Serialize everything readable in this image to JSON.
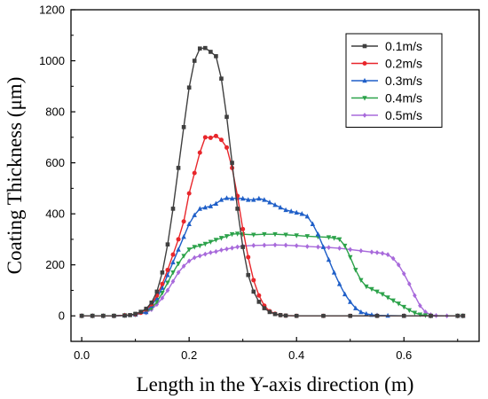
{
  "chart_data": {
    "type": "line",
    "title": "",
    "xlabel": "Length in the Y-axis direction (m)",
    "ylabel": "Coating Thickness (μm)",
    "xlim": [
      -0.02,
      0.74
    ],
    "ylim": [
      -100,
      1200
    ],
    "xticks": [
      "0.0",
      "0.2",
      "0.4",
      "0.6"
    ],
    "xtick_values": [
      0.0,
      0.2,
      0.4,
      0.6
    ],
    "yticks": [
      "0",
      "200",
      "400",
      "600",
      "800",
      "1000",
      "1200"
    ],
    "ytick_values": [
      0,
      200,
      400,
      600,
      800,
      1000,
      1200
    ],
    "grid": false,
    "legend_position": "top-right",
    "series": [
      {
        "name": "0.1m/s",
        "color": "#3f3f3f",
        "marker": "square",
        "points": [
          [
            0.0,
            0
          ],
          [
            0.02,
            0
          ],
          [
            0.04,
            0
          ],
          [
            0.06,
            0
          ],
          [
            0.08,
            1
          ],
          [
            0.09,
            3
          ],
          [
            0.1,
            8
          ],
          [
            0.11,
            16
          ],
          [
            0.12,
            28
          ],
          [
            0.13,
            52
          ],
          [
            0.14,
            95
          ],
          [
            0.15,
            170
          ],
          [
            0.16,
            280
          ],
          [
            0.17,
            420
          ],
          [
            0.18,
            580
          ],
          [
            0.19,
            740
          ],
          [
            0.2,
            895
          ],
          [
            0.21,
            1000
          ],
          [
            0.22,
            1048
          ],
          [
            0.23,
            1050
          ],
          [
            0.24,
            1035
          ],
          [
            0.25,
            1018
          ],
          [
            0.26,
            930
          ],
          [
            0.27,
            780
          ],
          [
            0.28,
            600
          ],
          [
            0.29,
            420
          ],
          [
            0.3,
            270
          ],
          [
            0.31,
            160
          ],
          [
            0.32,
            95
          ],
          [
            0.33,
            55
          ],
          [
            0.34,
            30
          ],
          [
            0.35,
            15
          ],
          [
            0.36,
            7
          ],
          [
            0.37,
            3
          ],
          [
            0.38,
            1
          ],
          [
            0.4,
            0
          ],
          [
            0.45,
            0
          ],
          [
            0.5,
            0
          ],
          [
            0.55,
            0
          ],
          [
            0.6,
            0
          ],
          [
            0.65,
            0
          ],
          [
            0.7,
            0
          ],
          [
            0.71,
            0
          ]
        ]
      },
      {
        "name": "0.2m/s",
        "color": "#e8262b",
        "marker": "circle",
        "points": [
          [
            0.0,
            0
          ],
          [
            0.02,
            0
          ],
          [
            0.04,
            0
          ],
          [
            0.06,
            0
          ],
          [
            0.08,
            2
          ],
          [
            0.1,
            6
          ],
          [
            0.11,
            12
          ],
          [
            0.12,
            25
          ],
          [
            0.13,
            45
          ],
          [
            0.14,
            80
          ],
          [
            0.15,
            125
          ],
          [
            0.16,
            180
          ],
          [
            0.17,
            240
          ],
          [
            0.18,
            300
          ],
          [
            0.19,
            370
          ],
          [
            0.2,
            480
          ],
          [
            0.21,
            560
          ],
          [
            0.22,
            640
          ],
          [
            0.23,
            700
          ],
          [
            0.24,
            698
          ],
          [
            0.25,
            705
          ],
          [
            0.26,
            690
          ],
          [
            0.27,
            660
          ],
          [
            0.28,
            580
          ],
          [
            0.29,
            470
          ],
          [
            0.3,
            340
          ],
          [
            0.31,
            230
          ],
          [
            0.32,
            140
          ],
          [
            0.33,
            80
          ],
          [
            0.34,
            40
          ],
          [
            0.35,
            18
          ],
          [
            0.36,
            8
          ],
          [
            0.37,
            3
          ],
          [
            0.38,
            1
          ],
          [
            0.4,
            0
          ],
          [
            0.45,
            0
          ],
          [
            0.5,
            0
          ],
          [
            0.55,
            0
          ],
          [
            0.6,
            0
          ],
          [
            0.65,
            0
          ],
          [
            0.7,
            0
          ],
          [
            0.71,
            0
          ]
        ]
      },
      {
        "name": "0.3m/s",
        "color": "#1f5fc8",
        "marker": "triangle-up",
        "points": [
          [
            0.0,
            0
          ],
          [
            0.02,
            0
          ],
          [
            0.04,
            0
          ],
          [
            0.06,
            0
          ],
          [
            0.08,
            2
          ],
          [
            0.1,
            5
          ],
          [
            0.12,
            15
          ],
          [
            0.13,
            40
          ],
          [
            0.14,
            70
          ],
          [
            0.15,
            110
          ],
          [
            0.16,
            160
          ],
          [
            0.17,
            210
          ],
          [
            0.18,
            260
          ],
          [
            0.19,
            310
          ],
          [
            0.2,
            360
          ],
          [
            0.21,
            395
          ],
          [
            0.22,
            420
          ],
          [
            0.23,
            425
          ],
          [
            0.24,
            430
          ],
          [
            0.25,
            440
          ],
          [
            0.26,
            455
          ],
          [
            0.27,
            462
          ],
          [
            0.28,
            460
          ],
          [
            0.29,
            462
          ],
          [
            0.3,
            460
          ],
          [
            0.31,
            455
          ],
          [
            0.32,
            455
          ],
          [
            0.33,
            460
          ],
          [
            0.34,
            455
          ],
          [
            0.35,
            445
          ],
          [
            0.36,
            435
          ],
          [
            0.37,
            425
          ],
          [
            0.38,
            415
          ],
          [
            0.39,
            410
          ],
          [
            0.4,
            405
          ],
          [
            0.41,
            400
          ],
          [
            0.42,
            390
          ],
          [
            0.43,
            360
          ],
          [
            0.44,
            320
          ],
          [
            0.45,
            270
          ],
          [
            0.46,
            220
          ],
          [
            0.47,
            170
          ],
          [
            0.48,
            125
          ],
          [
            0.49,
            85
          ],
          [
            0.5,
            55
          ],
          [
            0.51,
            30
          ],
          [
            0.52,
            15
          ],
          [
            0.53,
            8
          ],
          [
            0.54,
            4
          ],
          [
            0.55,
            2
          ],
          [
            0.57,
            1
          ],
          [
            0.6,
            0
          ],
          [
            0.65,
            0
          ],
          [
            0.7,
            0
          ],
          [
            0.71,
            0
          ]
        ]
      },
      {
        "name": "0.4m/s",
        "color": "#2ca24a",
        "marker": "triangle-down",
        "points": [
          [
            0.0,
            0
          ],
          [
            0.02,
            0
          ],
          [
            0.04,
            0
          ],
          [
            0.06,
            0
          ],
          [
            0.08,
            2
          ],
          [
            0.1,
            5
          ],
          [
            0.12,
            15
          ],
          [
            0.13,
            30
          ],
          [
            0.14,
            55
          ],
          [
            0.15,
            90
          ],
          [
            0.16,
            130
          ],
          [
            0.17,
            170
          ],
          [
            0.18,
            205
          ],
          [
            0.19,
            235
          ],
          [
            0.2,
            260
          ],
          [
            0.21,
            270
          ],
          [
            0.22,
            275
          ],
          [
            0.23,
            282
          ],
          [
            0.24,
            290
          ],
          [
            0.25,
            298
          ],
          [
            0.26,
            305
          ],
          [
            0.27,
            312
          ],
          [
            0.28,
            320
          ],
          [
            0.29,
            322
          ],
          [
            0.3,
            320
          ],
          [
            0.32,
            318
          ],
          [
            0.34,
            320
          ],
          [
            0.36,
            320
          ],
          [
            0.38,
            318
          ],
          [
            0.4,
            315
          ],
          [
            0.42,
            312
          ],
          [
            0.44,
            310
          ],
          [
            0.46,
            308
          ],
          [
            0.47,
            305
          ],
          [
            0.48,
            300
          ],
          [
            0.49,
            275
          ],
          [
            0.5,
            230
          ],
          [
            0.51,
            180
          ],
          [
            0.52,
            140
          ],
          [
            0.53,
            115
          ],
          [
            0.54,
            105
          ],
          [
            0.55,
            95
          ],
          [
            0.56,
            85
          ],
          [
            0.57,
            72
          ],
          [
            0.58,
            60
          ],
          [
            0.59,
            48
          ],
          [
            0.6,
            35
          ],
          [
            0.61,
            22
          ],
          [
            0.62,
            12
          ],
          [
            0.63,
            5
          ],
          [
            0.64,
            2
          ],
          [
            0.65,
            0
          ],
          [
            0.7,
            0
          ],
          [
            0.71,
            0
          ]
        ]
      },
      {
        "name": "0.5m/s",
        "color": "#a86adb",
        "marker": "diamond",
        "points": [
          [
            0.0,
            0
          ],
          [
            0.02,
            0
          ],
          [
            0.04,
            0
          ],
          [
            0.06,
            0
          ],
          [
            0.08,
            2
          ],
          [
            0.1,
            5
          ],
          [
            0.12,
            12
          ],
          [
            0.13,
            25
          ],
          [
            0.14,
            45
          ],
          [
            0.15,
            70
          ],
          [
            0.16,
            100
          ],
          [
            0.17,
            135
          ],
          [
            0.18,
            170
          ],
          [
            0.19,
            195
          ],
          [
            0.2,
            215
          ],
          [
            0.21,
            228
          ],
          [
            0.22,
            235
          ],
          [
            0.23,
            242
          ],
          [
            0.24,
            248
          ],
          [
            0.25,
            252
          ],
          [
            0.26,
            258
          ],
          [
            0.27,
            262
          ],
          [
            0.28,
            266
          ],
          [
            0.29,
            270
          ],
          [
            0.3,
            274
          ],
          [
            0.32,
            276
          ],
          [
            0.34,
            277
          ],
          [
            0.36,
            278
          ],
          [
            0.38,
            277
          ],
          [
            0.4,
            275
          ],
          [
            0.42,
            272
          ],
          [
            0.44,
            270
          ],
          [
            0.46,
            268
          ],
          [
            0.48,
            265
          ],
          [
            0.5,
            260
          ],
          [
            0.52,
            255
          ],
          [
            0.54,
            250
          ],
          [
            0.55,
            248
          ],
          [
            0.56,
            245
          ],
          [
            0.57,
            240
          ],
          [
            0.58,
            225
          ],
          [
            0.59,
            200
          ],
          [
            0.6,
            165
          ],
          [
            0.61,
            125
          ],
          [
            0.62,
            80
          ],
          [
            0.63,
            40
          ],
          [
            0.64,
            15
          ],
          [
            0.65,
            4
          ],
          [
            0.66,
            1
          ],
          [
            0.68,
            0
          ],
          [
            0.7,
            0
          ],
          [
            0.71,
            0
          ]
        ]
      }
    ]
  }
}
